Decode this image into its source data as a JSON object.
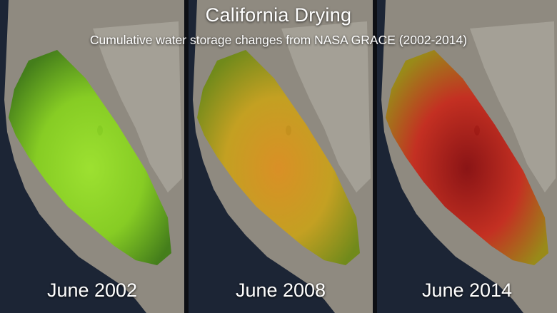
{
  "title": "California Drying",
  "subtitle": "Cumulative water storage changes from NASA GRACE (2002-2014)",
  "colors": {
    "ocean": "#1c2535",
    "land": "#8f8a80",
    "mountain": "#b7b2a8",
    "lake": "#1d2a36"
  },
  "panels": [
    {
      "date_label": "June 2002",
      "map_layer": "water-storage-2002",
      "severity": "wet",
      "colors": {
        "outer": "#3e7d12",
        "inner": "#86d21c",
        "core": "#9ee82a"
      }
    },
    {
      "date_label": "June 2008",
      "map_layer": "water-storage-2008",
      "severity": "moderate",
      "colors": {
        "outer": "#6e8a12",
        "inner": "#c8a21a",
        "core": "#e0901e"
      }
    },
    {
      "date_label": "June 2014",
      "map_layer": "water-storage-2014",
      "severity": "severe",
      "colors": {
        "outer": "#9a8a10",
        "inner": "#c8281a",
        "core": "#8a0a0c"
      }
    }
  ]
}
